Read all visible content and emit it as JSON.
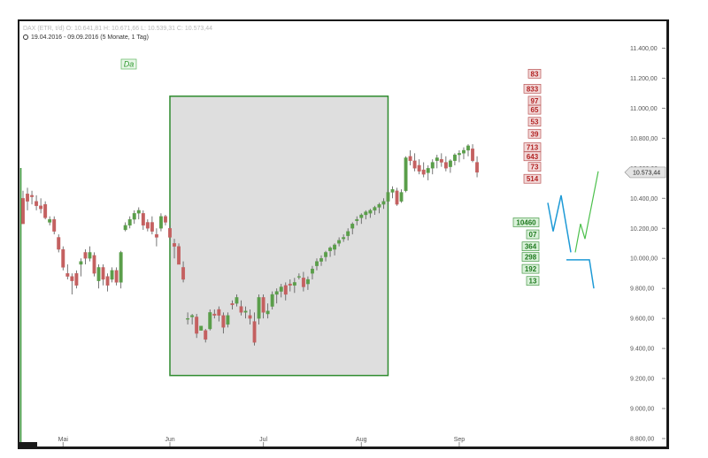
{
  "header": {
    "instrument_line": "DAX (ETR, t/d) O: 10.641,81 H: 10.671,66 L: 10.539,31 C: 10.573,44",
    "period_line": "19.04.2016 - 09.09.2016 (5 Monate, 1 Tag)"
  },
  "chart_data": {
    "type": "candlestick",
    "title": "",
    "xlabel": "",
    "ylabel": "",
    "ylim": [
      8800,
      11450
    ],
    "y_ticks": [
      "11.400,00",
      "11.200,00",
      "11.000,00",
      "10.800,00",
      "10.600,00",
      "10.400,00",
      "10.200,00",
      "10.000,00",
      "9.800,00",
      "9.600,00",
      "9.400,00",
      "9.200,00",
      "9.000,00",
      "8.800,00"
    ],
    "y_tick_values": [
      11400,
      11200,
      11000,
      10800,
      10600,
      10400,
      10200,
      10000,
      9800,
      9600,
      9400,
      9200,
      9000,
      8800
    ],
    "x_ticks": [
      "Mai",
      "Jun",
      "Jul",
      "Aug",
      "Sep"
    ],
    "x_tick_index": [
      9,
      33,
      54,
      76,
      98
    ],
    "last_value_label": "10.573,44",
    "last_value": 10573,
    "candles": [
      [
        10400,
        10450,
        10250,
        10230
      ],
      [
        10430,
        10470,
        10320,
        10380
      ],
      [
        10420,
        10450,
        10360,
        10410
      ],
      [
        10380,
        10420,
        10320,
        10350
      ],
      [
        10350,
        10400,
        10300,
        10330
      ],
      [
        10360,
        10380,
        10260,
        10270
      ],
      [
        10240,
        10280,
        10220,
        10260
      ],
      [
        10260,
        10280,
        10160,
        10180
      ],
      [
        10140,
        10160,
        10040,
        10060
      ],
      [
        10060,
        10080,
        9920,
        9940
      ],
      [
        9900,
        9960,
        9860,
        9880
      ],
      [
        9880,
        9900,
        9760,
        9850
      ],
      [
        9900,
        9920,
        9800,
        9820
      ],
      [
        9960,
        10000,
        9880,
        9980
      ],
      [
        10040,
        10060,
        9960,
        10000
      ],
      [
        10000,
        10080,
        9980,
        10040
      ],
      [
        10020,
        10040,
        9880,
        9900
      ],
      [
        9850,
        9960,
        9800,
        9940
      ],
      [
        9940,
        9960,
        9820,
        9860
      ],
      [
        9880,
        9900,
        9780,
        9820
      ],
      [
        9860,
        9940,
        9840,
        9920
      ],
      [
        9920,
        9940,
        9820,
        9840
      ],
      [
        9840,
        10050,
        9800,
        10040
      ],
      [
        10190,
        10240,
        10180,
        10220
      ],
      [
        10220,
        10280,
        10200,
        10260
      ],
      [
        10260,
        10320,
        10230,
        10300
      ],
      [
        10300,
        10340,
        10260,
        10320
      ],
      [
        10300,
        10320,
        10190,
        10220
      ],
      [
        10240,
        10260,
        10180,
        10200
      ],
      [
        10240,
        10280,
        10160,
        10180
      ],
      [
        10160,
        10200,
        10080,
        10140
      ],
      [
        10200,
        10300,
        10180,
        10280
      ],
      [
        10280,
        10290,
        10220,
        10240
      ],
      [
        10200,
        10220,
        10120,
        10140
      ],
      [
        10100,
        10130,
        10000,
        10080
      ],
      [
        10080,
        10100,
        9960,
        9960
      ],
      [
        9940,
        9980,
        9840,
        9860
      ],
      [
        9600,
        9640,
        9560,
        9600
      ],
      [
        9610,
        9630,
        9560,
        9620
      ],
      [
        9610,
        9630,
        9470,
        9500
      ],
      [
        9520,
        9550,
        9520,
        9550
      ],
      [
        9520,
        9530,
        9440,
        9460
      ],
      [
        9530,
        9660,
        9520,
        9640
      ],
      [
        9630,
        9660,
        9600,
        9620
      ],
      [
        9660,
        9680,
        9580,
        9620
      ],
      [
        9620,
        9640,
        9500,
        9540
      ],
      [
        9560,
        9640,
        9540,
        9620
      ],
      [
        9700,
        9720,
        9660,
        9690
      ],
      [
        9700,
        9760,
        9680,
        9740
      ],
      [
        9680,
        9720,
        9620,
        9640
      ],
      [
        9640,
        9680,
        9600,
        9650
      ],
      [
        9620,
        9660,
        9560,
        9600
      ],
      [
        9580,
        9640,
        9420,
        9440
      ],
      [
        9600,
        9760,
        9560,
        9740
      ],
      [
        9740,
        9760,
        9600,
        9640
      ],
      [
        9630,
        9700,
        9600,
        9650
      ],
      [
        9680,
        9780,
        9660,
        9760
      ],
      [
        9760,
        9800,
        9700,
        9780
      ],
      [
        9780,
        9830,
        9740,
        9810
      ],
      [
        9820,
        9840,
        9720,
        9760
      ],
      [
        9830,
        9860,
        9780,
        9820
      ],
      [
        9820,
        9870,
        9770,
        9840
      ],
      [
        9880,
        9900,
        9860,
        9880
      ],
      [
        9870,
        9910,
        9780,
        9810
      ],
      [
        9830,
        9880,
        9790,
        9860
      ],
      [
        9900,
        9950,
        9860,
        9930
      ],
      [
        9950,
        10000,
        9920,
        9980
      ],
      [
        9980,
        10020,
        9950,
        10000
      ],
      [
        10010,
        10050,
        9980,
        10040
      ],
      [
        10050,
        10080,
        10010,
        10070
      ],
      [
        10060,
        10100,
        10020,
        10090
      ],
      [
        10100,
        10140,
        10080,
        10120
      ],
      [
        10130,
        10160,
        10110,
        10140
      ],
      [
        10150,
        10200,
        10120,
        10180
      ],
      [
        10200,
        10240,
        10160,
        10230
      ],
      [
        10250,
        10280,
        10220,
        10260
      ],
      [
        10270,
        10300,
        10230,
        10290
      ],
      [
        10290,
        10320,
        10260,
        10310
      ],
      [
        10300,
        10330,
        10270,
        10320
      ],
      [
        10320,
        10350,
        10290,
        10340
      ],
      [
        10340,
        10370,
        10300,
        10360
      ],
      [
        10360,
        10400,
        10330,
        10380
      ],
      [
        10380,
        10460,
        10360,
        10440
      ],
      [
        10440,
        10480,
        10400,
        10460
      ],
      [
        10450,
        10470,
        10350,
        10360
      ],
      [
        10380,
        10460,
        10370,
        10440
      ],
      [
        10450,
        10680,
        10440,
        10670
      ],
      [
        10680,
        10720,
        10620,
        10650
      ],
      [
        10650,
        10700,
        10580,
        10600
      ],
      [
        10620,
        10660,
        10560,
        10580
      ],
      [
        10590,
        10640,
        10540,
        10560
      ],
      [
        10570,
        10620,
        10520,
        10600
      ],
      [
        10600,
        10660,
        10560,
        10640
      ],
      [
        10650,
        10690,
        10600,
        10670
      ],
      [
        10660,
        10700,
        10610,
        10640
      ],
      [
        10640,
        10680,
        10580,
        10600
      ],
      [
        10610,
        10660,
        10570,
        10650
      ],
      [
        10650,
        10700,
        10620,
        10690
      ],
      [
        10690,
        10720,
        10640,
        10700
      ],
      [
        10700,
        10740,
        10660,
        10720
      ],
      [
        10720,
        10760,
        10680,
        10750
      ],
      [
        10730,
        10760,
        10640,
        10650
      ],
      [
        10640,
        10680,
        10540,
        10573
      ]
    ],
    "annotation_box": {
      "x_start_index": 33,
      "x_end_index": 82,
      "y_top": 11080,
      "y_bottom": 9220
    },
    "da_label": "Da",
    "red_labels": [
      "83",
      "833",
      "97",
      "65",
      "53",
      "39",
      "713",
      "643",
      "73",
      "514"
    ],
    "red_label_values": [
      11230,
      11130,
      11050,
      10990,
      10910,
      10830,
      10740,
      10680,
      10610,
      10530
    ],
    "green_labels": [
      "10460",
      "07",
      "364",
      "298",
      "192",
      "13"
    ],
    "green_label_values": [
      10240,
      10160,
      10080,
      10010,
      9930,
      9850
    ],
    "blue_projection": [
      [
        10370,
        0
      ],
      [
        10180,
        1
      ],
      [
        10420,
        2
      ],
      [
        10040,
        3
      ]
    ],
    "blue_flat": [
      [
        9990,
        0
      ],
      [
        9990,
        1
      ],
      [
        9800,
        2
      ]
    ],
    "green_projection": [
      [
        10040,
        0
      ],
      [
        10230,
        1
      ],
      [
        10130,
        2
      ],
      [
        10580,
        3
      ]
    ],
    "colors": {
      "up": "#5a9e4a",
      "down": "#c46060",
      "box_fill": "#dedede",
      "box_border": "#2e8b2e",
      "projection_blue": "#1e9ad6",
      "projection_green": "#4cc04c"
    }
  },
  "footer": {
    "badge": ""
  }
}
